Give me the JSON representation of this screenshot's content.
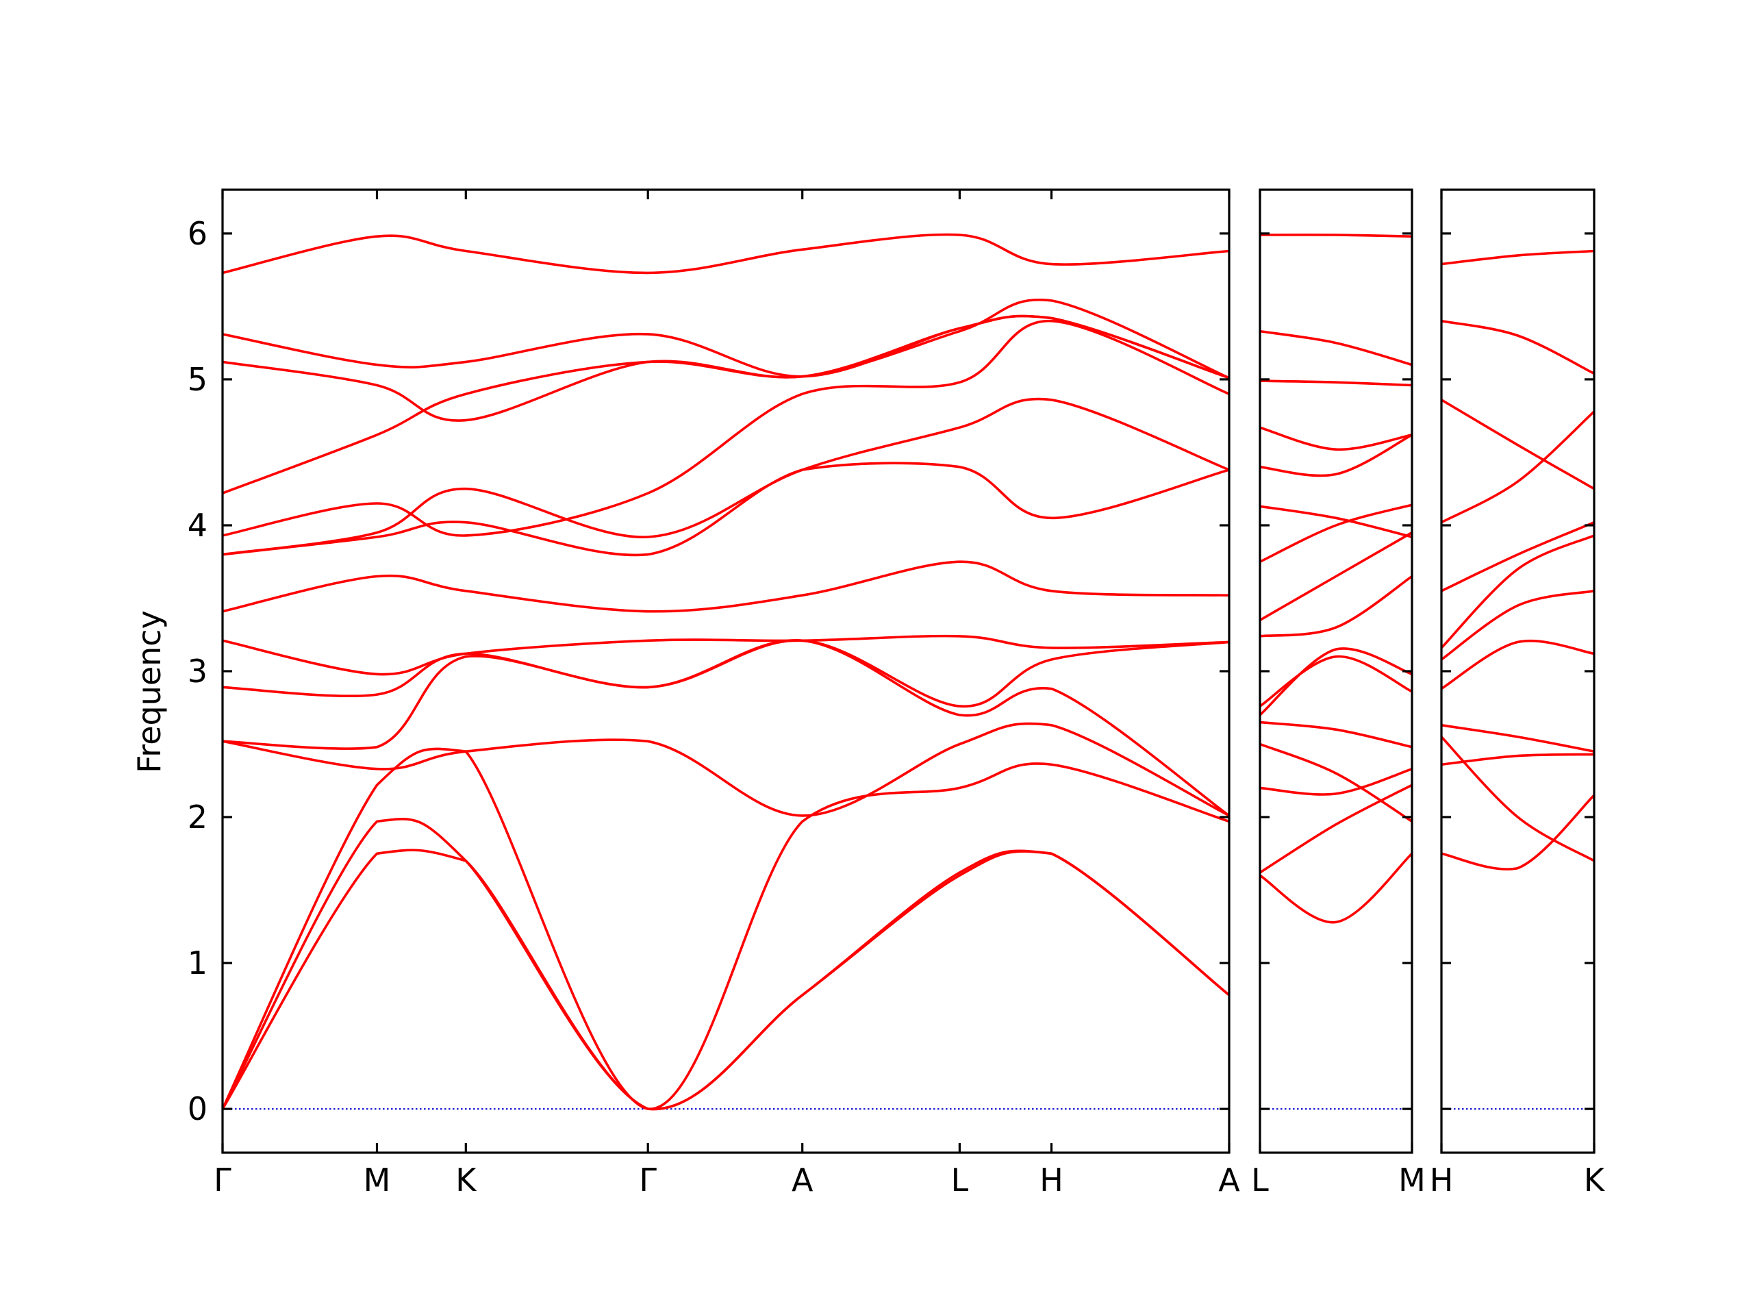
{
  "chart_data": {
    "type": "line",
    "title": "",
    "ylabel": "Frequency",
    "xlabel": "",
    "ylim": [
      -0.3,
      6.3
    ],
    "yticks": [
      0,
      1,
      2,
      3,
      4,
      5,
      6
    ],
    "grid": false,
    "colors": {
      "bands": "#ff0000",
      "zero_line": "#0000cc",
      "axes": "#000000"
    },
    "panels": [
      {
        "xticks": [
          0,
          1.06,
          1.67,
          2.92,
          3.98,
          5.06,
          5.69,
          6.91
        ],
        "xtick_labels": [
          "Γ",
          "M",
          "K",
          "Γ",
          "A",
          "L",
          "H",
          "A"
        ],
        "xlim": [
          0,
          6.91
        ],
        "series": [
          {
            "x": [
              0,
              1.06,
              1.67,
              2.92,
              3.98,
              5.06,
              5.69,
              6.91
            ],
            "y": [
              0,
              1.75,
              1.7,
              0,
              0.78,
              1.6,
              1.75,
              0.78
            ]
          },
          {
            "x": [
              0,
              1.06,
              1.67,
              2.92,
              3.98,
              5.06,
              5.69,
              6.91
            ],
            "y": [
              0,
              1.97,
              1.7,
              0,
              0.78,
              1.62,
              1.75,
              0.78
            ]
          },
          {
            "x": [
              0,
              1.06,
              1.67,
              2.92,
              3.98,
              5.06,
              5.69,
              6.91
            ],
            "y": [
              0,
              2.22,
              2.45,
              0,
              1.97,
              2.2,
              2.36,
              1.97
            ]
          },
          {
            "x": [
              0,
              1.06,
              1.67,
              2.92,
              3.98,
              5.06,
              5.69,
              6.91
            ],
            "y": [
              2.52,
              2.33,
              2.45,
              2.52,
              2.01,
              2.5,
              2.63,
              2.01
            ]
          },
          {
            "x": [
              0,
              1.06,
              1.67,
              2.92,
              3.98,
              5.06,
              5.69,
              6.91
            ],
            "y": [
              2.52,
              2.48,
              3.1,
              2.89,
              3.21,
              2.7,
              2.88,
              2.01
            ]
          },
          {
            "x": [
              0,
              1.06,
              1.67,
              2.92,
              3.98,
              5.06,
              5.69,
              6.91
            ],
            "y": [
              2.89,
              2.84,
              3.12,
              2.89,
              3.21,
              2.76,
              3.08,
              3.2
            ]
          },
          {
            "x": [
              0,
              1.06,
              1.67,
              2.92,
              3.98,
              5.06,
              5.69,
              6.91
            ],
            "y": [
              3.21,
              2.98,
              3.12,
              3.21,
              3.21,
              3.24,
              3.16,
              3.2
            ]
          },
          {
            "x": [
              0,
              1.06,
              1.67,
              2.92,
              3.98,
              5.06,
              5.69,
              6.91
            ],
            "y": [
              3.41,
              3.65,
              3.55,
              3.41,
              3.52,
              3.75,
              3.55,
              3.52
            ]
          },
          {
            "x": [
              0,
              1.06,
              1.67,
              2.92,
              3.98,
              5.06,
              5.69,
              6.91
            ],
            "y": [
              3.8,
              3.92,
              4.02,
              3.8,
              4.38,
              4.4,
              4.05,
              4.38
            ]
          },
          {
            "x": [
              0,
              1.06,
              1.67,
              2.92,
              3.98,
              5.06,
              5.69,
              6.91
            ],
            "y": [
              3.8,
              3.95,
              4.25,
              3.92,
              4.38,
              4.67,
              4.86,
              4.38
            ]
          },
          {
            "x": [
              0,
              1.06,
              1.67,
              2.92,
              3.98,
              5.06,
              5.69,
              6.91
            ],
            "y": [
              3.93,
              4.15,
              3.93,
              4.22,
              4.9,
              4.98,
              5.4,
              4.9
            ]
          },
          {
            "x": [
              0,
              1.06,
              1.67,
              2.92,
              3.98,
              5.06,
              5.69,
              6.91
            ],
            "y": [
              4.22,
              4.62,
              4.9,
              5.12,
              5.02,
              5.33,
              5.54,
              5.01
            ]
          },
          {
            "x": [
              0,
              1.06,
              1.67,
              2.92,
              3.98,
              5.06,
              5.69,
              6.91
            ],
            "y": [
              5.12,
              4.96,
              4.72,
              5.12,
              5.02,
              5.35,
              5.42,
              5.01
            ]
          },
          {
            "x": [
              0,
              1.06,
              1.67,
              2.92,
              3.98,
              5.06,
              5.69,
              6.91
            ],
            "y": [
              5.31,
              5.1,
              5.12,
              5.31,
              5.02,
              5.35,
              5.42,
              5.01
            ]
          },
          {
            "x": [
              0,
              1.06,
              1.67,
              2.92,
              3.98,
              5.06,
              5.69,
              6.91
            ],
            "y": [
              5.73,
              5.98,
              5.88,
              5.73,
              5.89,
              5.99,
              5.79,
              5.88
            ]
          }
        ]
      },
      {
        "xticks": [
          0,
          1
        ],
        "xtick_labels": [
          "L",
          "M"
        ],
        "xlim": [
          0,
          1
        ],
        "series": [
          {
            "x": [
              0,
              0.5,
              1
            ],
            "y": [
              1.6,
              1.28,
              1.75
            ]
          },
          {
            "x": [
              0,
              0.5,
              1
            ],
            "y": [
              1.62,
              1.95,
              2.22
            ]
          },
          {
            "x": [
              0,
              0.5,
              1
            ],
            "y": [
              2.2,
              2.16,
              2.33
            ]
          },
          {
            "x": [
              0,
              0.5,
              1
            ],
            "y": [
              2.5,
              2.3,
              1.97
            ]
          },
          {
            "x": [
              0,
              0.5,
              1
            ],
            "y": [
              2.65,
              2.6,
              2.48
            ]
          },
          {
            "x": [
              0,
              0.5,
              1
            ],
            "y": [
              2.7,
              3.15,
              2.98
            ]
          },
          {
            "x": [
              0,
              0.5,
              1
            ],
            "y": [
              2.76,
              3.1,
              2.86
            ]
          },
          {
            "x": [
              0,
              0.5,
              1
            ],
            "y": [
              3.24,
              3.3,
              3.65
            ]
          },
          {
            "x": [
              0,
              0.5,
              1
            ],
            "y": [
              3.35,
              3.65,
              3.95
            ]
          },
          {
            "x": [
              0,
              0.5,
              1
            ],
            "y": [
              3.75,
              4.0,
              4.14
            ]
          },
          {
            "x": [
              0,
              0.5,
              1
            ],
            "y": [
              4.13,
              4.05,
              3.92
            ]
          },
          {
            "x": [
              0,
              0.5,
              1
            ],
            "y": [
              4.4,
              4.35,
              4.62
            ]
          },
          {
            "x": [
              0,
              0.5,
              1
            ],
            "y": [
              4.67,
              4.52,
              4.62
            ]
          },
          {
            "x": [
              0,
              0.5,
              1
            ],
            "y": [
              4.99,
              4.98,
              4.96
            ]
          },
          {
            "x": [
              0,
              0.5,
              1
            ],
            "y": [
              5.33,
              5.25,
              5.1
            ]
          },
          {
            "x": [
              0,
              0.5,
              1
            ],
            "y": [
              5.99,
              5.99,
              5.98
            ]
          }
        ]
      },
      {
        "xticks": [
          0,
          1
        ],
        "xtick_labels": [
          "H",
          "K"
        ],
        "xlim": [
          0,
          1
        ],
        "series": [
          {
            "x": [
              0,
              0.5,
              1
            ],
            "y": [
              1.75,
              1.65,
              2.15
            ]
          },
          {
            "x": [
              0,
              0.5,
              1
            ],
            "y": [
              2.36,
              2.42,
              2.43
            ]
          },
          {
            "x": [
              0,
              0.5,
              1
            ],
            "y": [
              2.55,
              2.0,
              1.7
            ]
          },
          {
            "x": [
              0,
              0.5,
              1
            ],
            "y": [
              2.63,
              2.55,
              2.45
            ]
          },
          {
            "x": [
              0,
              0.5,
              1
            ],
            "y": [
              2.88,
              3.2,
              3.12
            ]
          },
          {
            "x": [
              0,
              0.5,
              1
            ],
            "y": [
              3.08,
              3.45,
              3.55
            ]
          },
          {
            "x": [
              0,
              0.5,
              1
            ],
            "y": [
              3.16,
              3.7,
              3.93
            ]
          },
          {
            "x": [
              0,
              0.5,
              1
            ],
            "y": [
              3.55,
              3.8,
              4.02
            ]
          },
          {
            "x": [
              0,
              0.5,
              1
            ],
            "y": [
              4.02,
              4.3,
              4.78
            ]
          },
          {
            "x": [
              0,
              0.5,
              1
            ],
            "y": [
              4.86,
              4.55,
              4.25
            ]
          },
          {
            "x": [
              0,
              0.5,
              1
            ],
            "y": [
              5.4,
              5.3,
              5.04
            ]
          },
          {
            "x": [
              0,
              0.5,
              1
            ],
            "y": [
              5.79,
              5.85,
              5.88
            ]
          }
        ]
      }
    ]
  }
}
